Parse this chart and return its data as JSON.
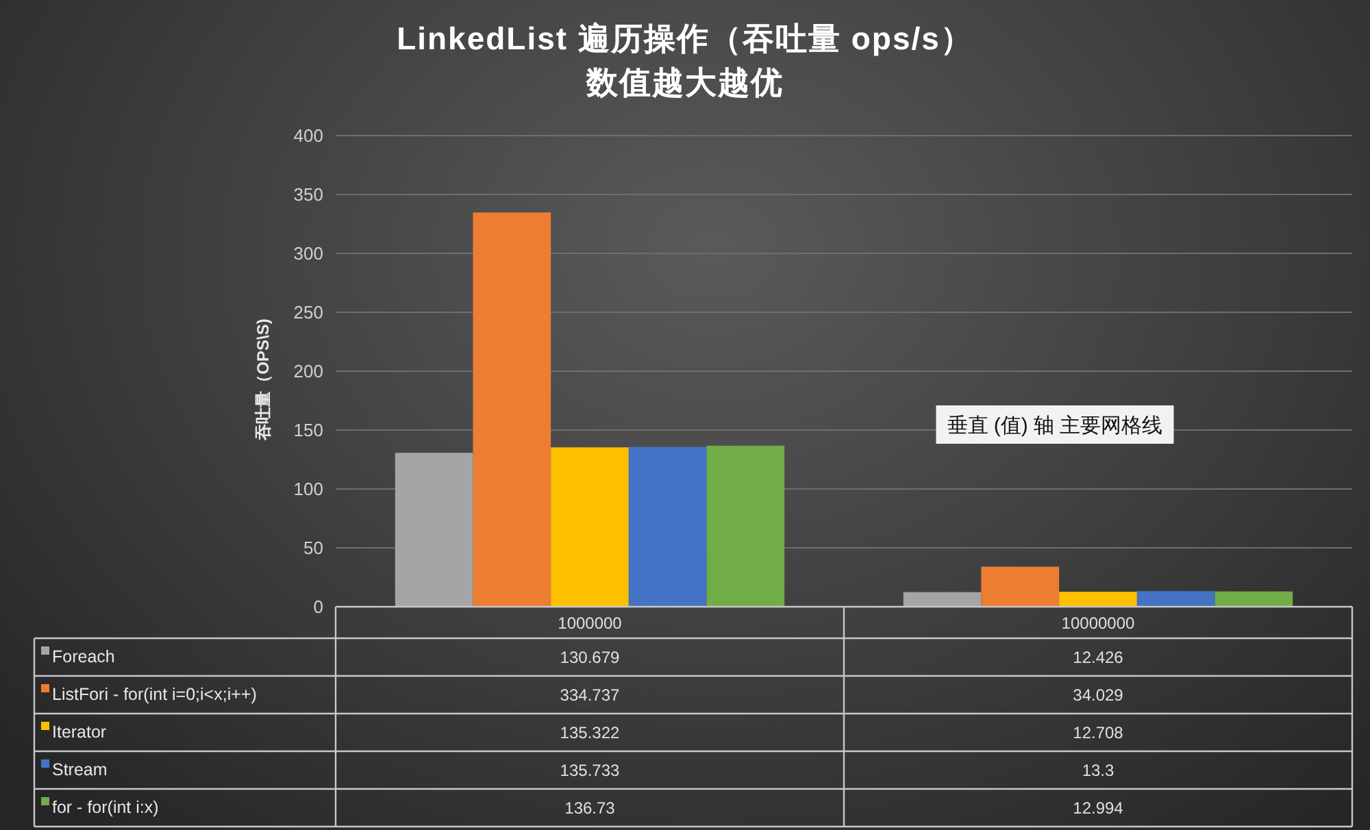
{
  "chart_data": {
    "type": "bar",
    "title": "LinkedList 遍历操作（吞吐量 ops/s）",
    "subtitle": "数值越大越优",
    "ylabel": "吞吐量（OPS\\S)",
    "categories": [
      "1000000",
      "10000000"
    ],
    "series": [
      {
        "name": "Foreach",
        "color": "#a5a5a5",
        "values": [
          130.679,
          12.426
        ]
      },
      {
        "name": "ListFori - for(int i=0;i<x;i++)",
        "color": "#ed7d31",
        "values": [
          334.737,
          34.029
        ]
      },
      {
        "name": "Iterator",
        "color": "#ffc000",
        "values": [
          135.322,
          12.708
        ]
      },
      {
        "name": "Stream",
        "color": "#4472c4",
        "values": [
          135.733,
          13.3
        ]
      },
      {
        "name": "for - for(int i:x)",
        "color": "#70ad47",
        "values": [
          136.73,
          12.994
        ]
      }
    ],
    "ylim": [
      0,
      400
    ],
    "yticks": [
      0,
      50,
      100,
      150,
      200,
      250,
      300,
      350,
      400
    ],
    "grid": "y",
    "legend": "bottom",
    "data_labels": true,
    "annotations": [
      "垂直 (值) 轴 主要网格线"
    ]
  }
}
